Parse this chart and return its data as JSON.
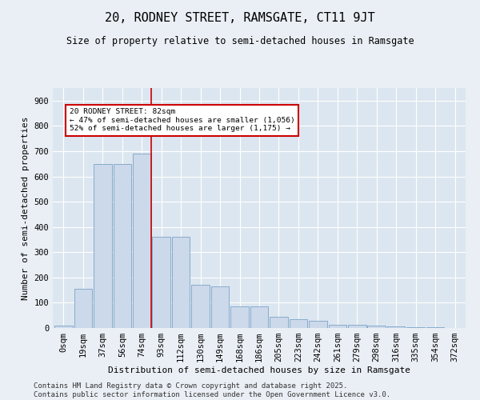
{
  "title": "20, RODNEY STREET, RAMSGATE, CT11 9JT",
  "subtitle": "Size of property relative to semi-detached houses in Ramsgate",
  "xlabel": "Distribution of semi-detached houses by size in Ramsgate",
  "ylabel": "Number of semi-detached properties",
  "bar_labels": [
    "0sqm",
    "19sqm",
    "37sqm",
    "56sqm",
    "74sqm",
    "93sqm",
    "112sqm",
    "130sqm",
    "149sqm",
    "168sqm",
    "186sqm",
    "205sqm",
    "223sqm",
    "242sqm",
    "261sqm",
    "279sqm",
    "298sqm",
    "316sqm",
    "335sqm",
    "354sqm",
    "372sqm"
  ],
  "bar_values": [
    10,
    155,
    650,
    650,
    690,
    360,
    360,
    170,
    165,
    85,
    85,
    45,
    35,
    30,
    14,
    14,
    10,
    5,
    3,
    2,
    1
  ],
  "bar_color": "#ccd9ea",
  "bar_edge_color": "#7aa3c8",
  "property_line_x": 4.5,
  "annotation_text": "20 RODNEY STREET: 82sqm\n← 47% of semi-detached houses are smaller (1,056)\n52% of semi-detached houses are larger (1,175) →",
  "annotation_box_color": "#ffffff",
  "annotation_box_edge": "#cc0000",
  "annotation_line_color": "#cc0000",
  "ylim": [
    0,
    950
  ],
  "yticks": [
    0,
    100,
    200,
    300,
    400,
    500,
    600,
    700,
    800,
    900
  ],
  "bg_color": "#eaeff5",
  "plot_bg_color": "#dce6f0",
  "footer": "Contains HM Land Registry data © Crown copyright and database right 2025.\nContains public sector information licensed under the Open Government Licence v3.0.",
  "title_fontsize": 11,
  "subtitle_fontsize": 8.5,
  "xlabel_fontsize": 8,
  "ylabel_fontsize": 8,
  "tick_fontsize": 7.5,
  "footer_fontsize": 6.5
}
